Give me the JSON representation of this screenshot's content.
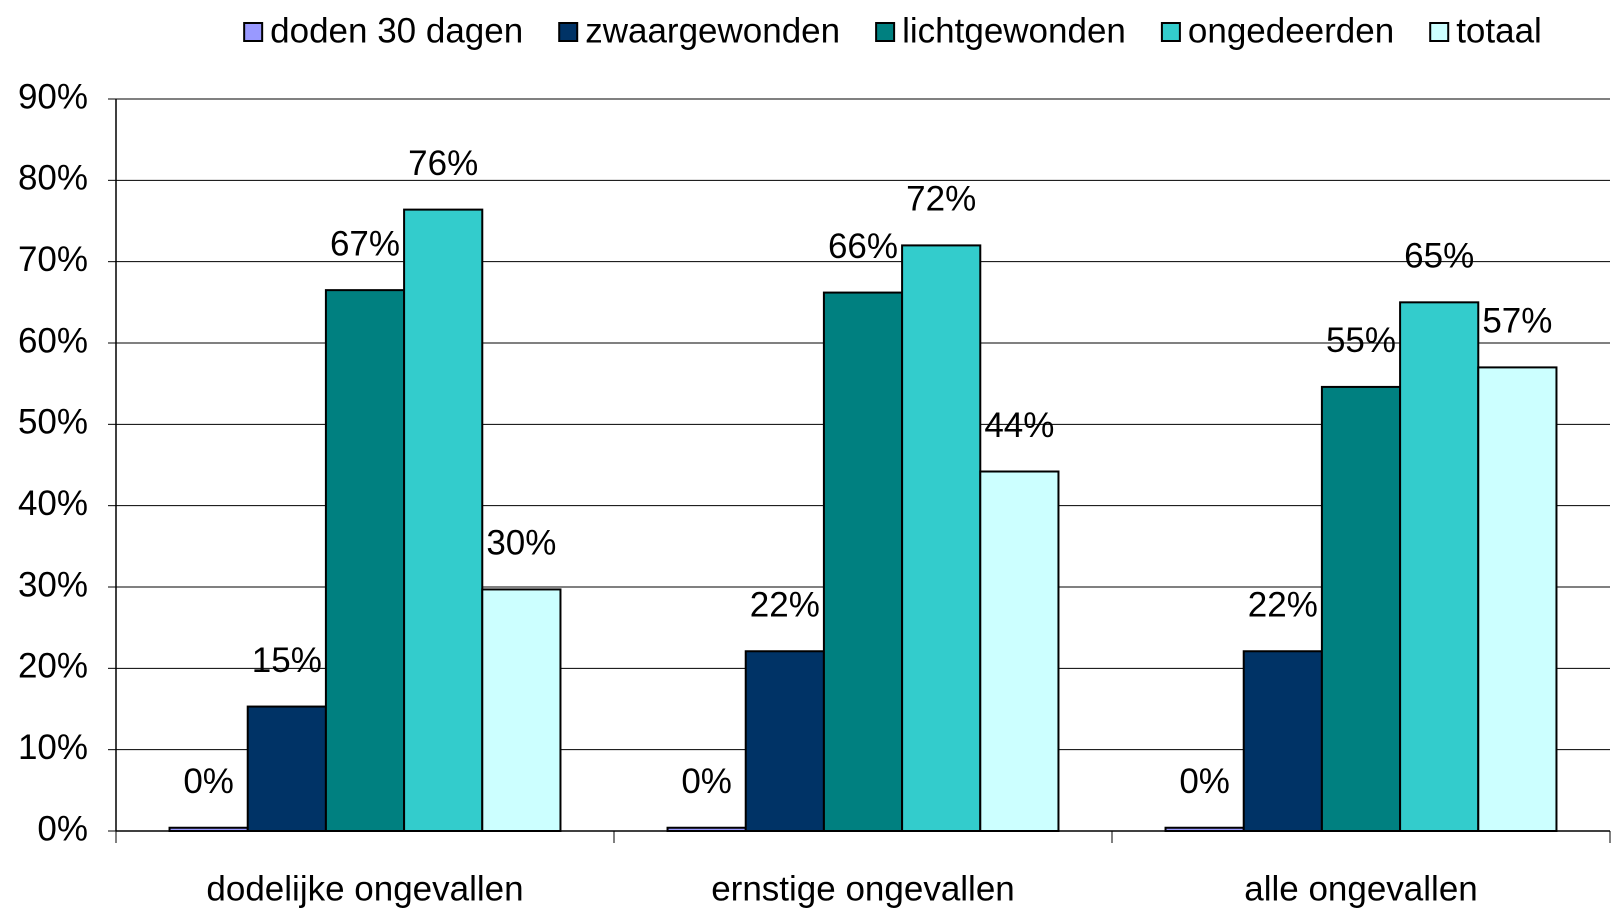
{
  "chart_data": {
    "type": "bar",
    "categories": [
      "dodelijke ongevallen",
      "ernstige ongevallen",
      "alle ongevallen"
    ],
    "series": [
      {
        "name": "doden 30 dagen",
        "color": "#9999ff",
        "values": [
          0.4,
          0.4,
          0.4
        ],
        "value_labels": [
          "0%",
          "0%",
          "0%"
        ]
      },
      {
        "name": "zwaargewonden",
        "color": "#003366",
        "values": [
          15.3,
          22.1,
          22.1
        ],
        "value_labels": [
          "15%",
          "22%",
          "22%"
        ]
      },
      {
        "name": "lichtgewonden",
        "color": "#008080",
        "values": [
          66.5,
          66.2,
          54.6
        ],
        "value_labels": [
          "67%",
          "66%",
          "55%"
        ]
      },
      {
        "name": "ongedeerden",
        "color": "#33cccc",
        "values": [
          76.4,
          72.0,
          65.0
        ],
        "value_labels": [
          "76%",
          "72%",
          "65%"
        ]
      },
      {
        "name": "totaal",
        "color": "#ccffff",
        "values": [
          29.7,
          44.2,
          57.0
        ],
        "value_labels": [
          "30%",
          "44%",
          "57%"
        ]
      }
    ],
    "ylim": [
      0,
      90
    ],
    "yticks": [
      {
        "value": 0,
        "label": "0%"
      },
      {
        "value": 10,
        "label": "10%"
      },
      {
        "value": 20,
        "label": "20%"
      },
      {
        "value": 30,
        "label": "30%"
      },
      {
        "value": 40,
        "label": "40%"
      },
      {
        "value": 50,
        "label": "50%"
      },
      {
        "value": 60,
        "label": "60%"
      },
      {
        "value": 70,
        "label": "70%"
      },
      {
        "value": 80,
        "label": "80%"
      },
      {
        "value": 90,
        "label": "90%"
      }
    ],
    "grid": true,
    "legend": "top"
  }
}
